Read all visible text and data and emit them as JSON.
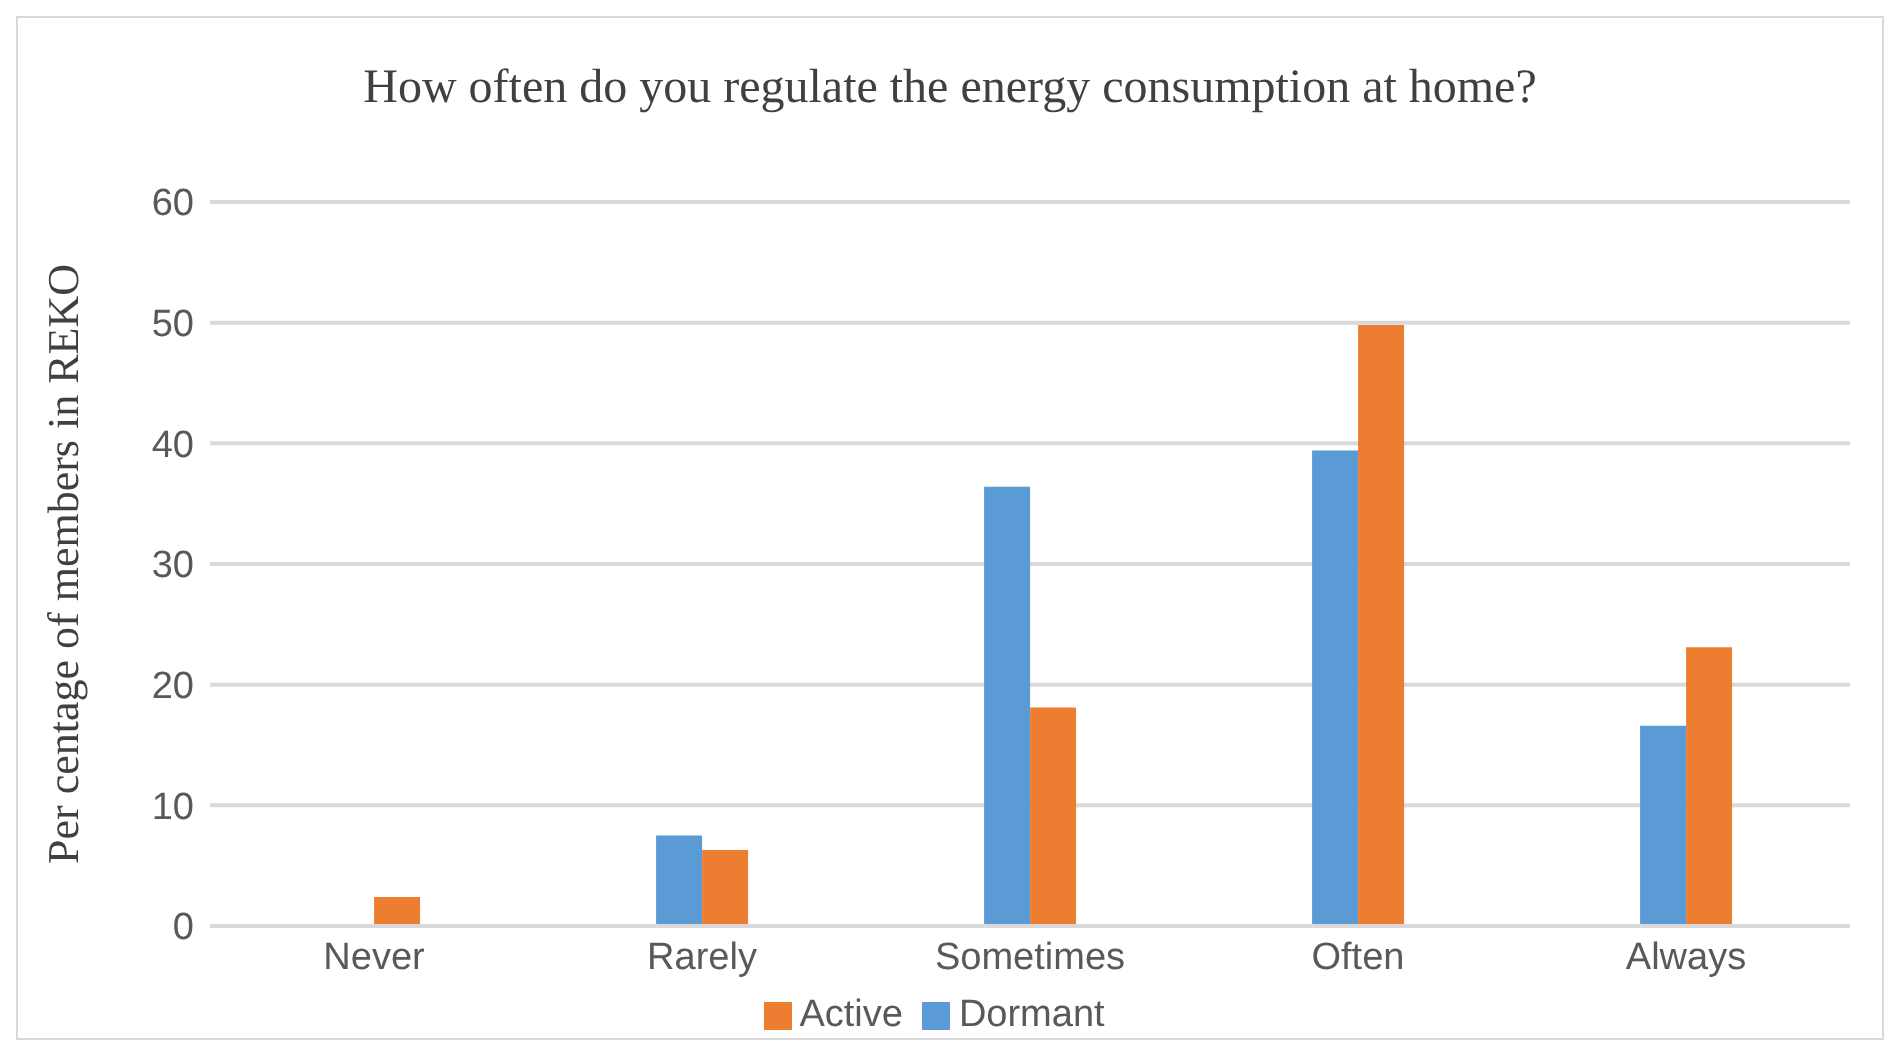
{
  "chart_data": {
    "type": "bar",
    "title": "How often do you regulate the energy consumption at home?",
    "ylabel": "Per centage of members in REKO",
    "categories": [
      "Never",
      "Rarely",
      "Sometimes",
      "Often",
      "Always"
    ],
    "series": [
      {
        "name": "Dormant",
        "color": "#5b9bd5",
        "values": [
          0,
          7.5,
          36.4,
          39.4,
          16.6
        ]
      },
      {
        "name": "Active",
        "color": "#ed7d31",
        "values": [
          2.4,
          6.3,
          18.1,
          49.8,
          23.1
        ]
      }
    ],
    "ylim": [
      0,
      60
    ],
    "yticks": [
      0,
      10,
      20,
      30,
      40,
      50,
      60
    ],
    "grid": "y",
    "legend": "bottom"
  }
}
